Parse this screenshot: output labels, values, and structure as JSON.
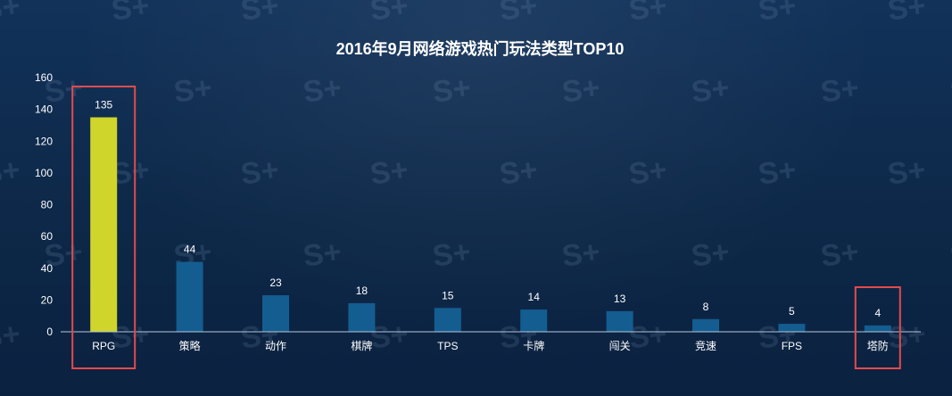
{
  "chart_data": {
    "type": "bar",
    "title": "2016年9月网络游戏热门玩法类型TOP10",
    "xlabel": "",
    "ylabel": "",
    "ylim": [
      0,
      160
    ],
    "yticks": [
      0,
      20,
      40,
      60,
      80,
      100,
      120,
      140,
      160
    ],
    "categories": [
      "RPG",
      "策略",
      "动作",
      "棋牌",
      "TPS",
      "卡牌",
      "闯关",
      "竞速",
      "FPS",
      "塔防"
    ],
    "values": [
      135,
      44,
      23,
      18,
      15,
      14,
      13,
      8,
      5,
      4
    ],
    "highlighted_categories": [
      "RPG",
      "塔防"
    ],
    "colors": {
      "bar": "#145d90",
      "highlight_bar": "#cfd52a",
      "highlight_box": "#e34b4b",
      "axis": "#b7c7d8",
      "background": "#0f2747"
    },
    "grid": false,
    "legend": "none"
  }
}
